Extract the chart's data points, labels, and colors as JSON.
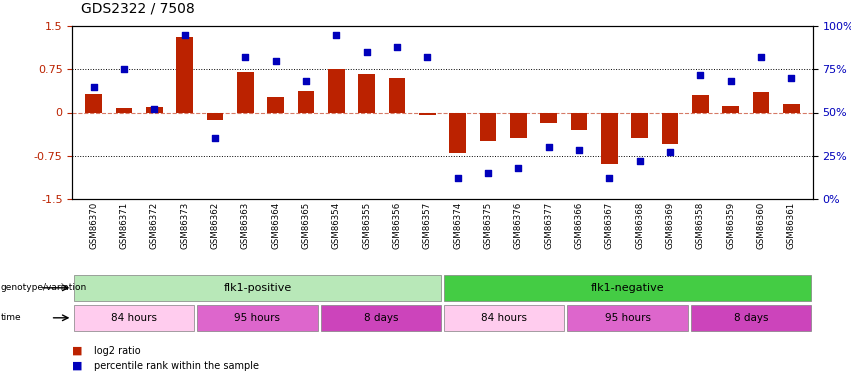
{
  "title": "GDS2322 / 7508",
  "samples": [
    "GSM86370",
    "GSM86371",
    "GSM86372",
    "GSM86373",
    "GSM86362",
    "GSM86363",
    "GSM86364",
    "GSM86365",
    "GSM86354",
    "GSM86355",
    "GSM86356",
    "GSM86357",
    "GSM86374",
    "GSM86375",
    "GSM86376",
    "GSM86377",
    "GSM86366",
    "GSM86367",
    "GSM86368",
    "GSM86369",
    "GSM86358",
    "GSM86359",
    "GSM86360",
    "GSM86361"
  ],
  "log2_ratio": [
    0.32,
    0.07,
    0.1,
    1.32,
    -0.13,
    0.7,
    0.27,
    0.37,
    0.76,
    0.67,
    0.6,
    -0.05,
    -0.7,
    -0.5,
    -0.45,
    -0.18,
    -0.3,
    -0.9,
    -0.45,
    -0.55,
    0.3,
    0.12,
    0.35,
    0.15
  ],
  "percentile": [
    65,
    75,
    52,
    95,
    35,
    82,
    80,
    68,
    95,
    85,
    88,
    82,
    12,
    15,
    18,
    30,
    28,
    12,
    22,
    27,
    72,
    68,
    82,
    70
  ],
  "groups": [
    {
      "label": "flk1-positive",
      "start": 0,
      "end": 11,
      "color": "#b8e8b8"
    },
    {
      "label": "flk1-negative",
      "start": 12,
      "end": 23,
      "color": "#44cc44"
    }
  ],
  "time_groups": [
    {
      "label": "84 hours",
      "start": 0,
      "end": 3,
      "color": "#ffccee"
    },
    {
      "label": "95 hours",
      "start": 4,
      "end": 7,
      "color": "#dd66cc"
    },
    {
      "label": "8 days",
      "start": 8,
      "end": 11,
      "color": "#cc44bb"
    },
    {
      "label": "84 hours",
      "start": 12,
      "end": 15,
      "color": "#ffccee"
    },
    {
      "label": "95 hours",
      "start": 16,
      "end": 19,
      "color": "#dd66cc"
    },
    {
      "label": "8 days",
      "start": 20,
      "end": 23,
      "color": "#cc44bb"
    }
  ],
  "bar_color": "#bb2200",
  "dot_color": "#0000bb",
  "ylim": [
    -1.5,
    1.5
  ],
  "y_ticks_left": [
    -1.5,
    -0.75,
    0,
    0.75,
    1.5
  ],
  "right_tick_labels": [
    "0%",
    "25%",
    "50%",
    "75%",
    "100%"
  ],
  "hline_dotted": [
    0.75,
    -0.75
  ],
  "legend_items": [
    {
      "label": "log2 ratio",
      "color": "#bb2200"
    },
    {
      "label": "percentile rank within the sample",
      "color": "#0000bb"
    }
  ],
  "background_color": "#ffffff",
  "bar_width": 0.55
}
